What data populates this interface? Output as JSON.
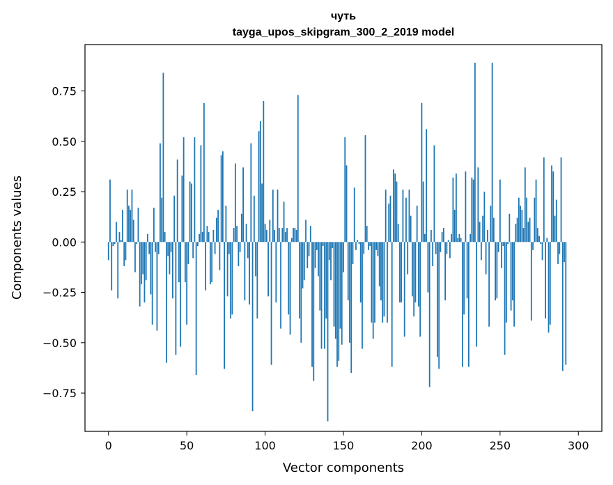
{
  "chart_data": {
    "type": "bar",
    "title_line1": "чуть",
    "title_line2": "tayga_upos_skipgram_300_2_2019 model",
    "xlabel": "Vector components",
    "ylabel": "Components values",
    "xlim": [
      -15,
      315
    ],
    "ylim": [
      -0.94,
      0.98
    ],
    "xticks": [
      0,
      50,
      100,
      150,
      200,
      250,
      300
    ],
    "yticks": [
      -0.75,
      -0.5,
      -0.25,
      0.0,
      0.25,
      0.5,
      0.75
    ],
    "ytick_labels": [
      "−0.75",
      "−0.50",
      "−0.25",
      "0.00",
      "0.25",
      "0.50",
      "0.75"
    ],
    "grid": false,
    "bar_color": "#1f77b4",
    "values": [
      -0.09,
      0.31,
      -0.24,
      -0.02,
      -0.01,
      0.1,
      -0.28,
      0.05,
      0.01,
      0.16,
      -0.12,
      -0.09,
      0.26,
      0.18,
      0.16,
      0.26,
      0.11,
      -0.15,
      -0.01,
      0.17,
      -0.32,
      -0.21,
      -0.16,
      -0.3,
      -0.19,
      0.04,
      -0.06,
      -0.26,
      -0.41,
      0.17,
      -0.05,
      -0.44,
      -0.06,
      0.49,
      0.22,
      0.84,
      0.05,
      -0.6,
      -0.07,
      -0.16,
      -0.05,
      -0.28,
      0.23,
      -0.56,
      0.41,
      -0.2,
      -0.52,
      0.33,
      0.52,
      -0.2,
      -0.41,
      -0.11,
      0.3,
      0.29,
      -0.08,
      0.52,
      -0.66,
      -0.02,
      0.04,
      0.48,
      0.05,
      0.69,
      -0.24,
      0.08,
      0.05,
      -0.21,
      -0.2,
      0.06,
      -0.06,
      0.12,
      0.16,
      -0.14,
      0.43,
      0.45,
      -0.63,
      0.18,
      -0.27,
      -0.06,
      -0.38,
      -0.36,
      0.07,
      0.39,
      0.08,
      -0.12,
      -0.05,
      0.14,
      0.37,
      -0.29,
      0.09,
      -0.08,
      -0.31,
      0.49,
      -0.84,
      0.23,
      -0.17,
      -0.38,
      0.55,
      0.6,
      0.29,
      0.7,
      0.09,
      0.06,
      -0.27,
      0.11,
      -0.61,
      0.26,
      0.06,
      -0.3,
      0.26,
      0.07,
      -0.43,
      0.07,
      0.2,
      0.05,
      0.07,
      -0.36,
      -0.46,
      0.02,
      0.07,
      0.07,
      0.06,
      0.73,
      -0.38,
      -0.5,
      -0.23,
      -0.19,
      0.11,
      -0.13,
      -0.07,
      0.08,
      -0.62,
      -0.69,
      -0.13,
      -0.04,
      -0.17,
      -0.34,
      -0.53,
      -0.02,
      -0.53,
      -0.38,
      -0.89,
      -0.09,
      -0.19,
      -0.03,
      -0.42,
      -0.48,
      -0.62,
      -0.59,
      -0.43,
      -0.51,
      -0.15,
      0.52,
      0.38,
      -0.29,
      -0.5,
      -0.65,
      -0.11,
      0.27,
      -0.04,
      0.01,
      -0.01,
      -0.3,
      -0.53,
      -0.06,
      0.53,
      0.08,
      -0.04,
      -0.02,
      -0.4,
      -0.48,
      -0.4,
      -0.04,
      -0.07,
      -0.22,
      -0.29,
      -0.4,
      -0.37,
      0.26,
      -0.4,
      0.19,
      0.23,
      -0.62,
      0.36,
      0.34,
      0.3,
      0.09,
      -0.3,
      -0.3,
      0.26,
      -0.47,
      0.22,
      -0.16,
      0.26,
      0.13,
      -0.27,
      -0.37,
      -0.3,
      0.18,
      -0.32,
      -0.47,
      0.69,
      0.3,
      0.04,
      0.56,
      -0.25,
      -0.72,
      0.06,
      -0.12,
      0.48,
      -0.06,
      -0.57,
      -0.63,
      -0.05,
      0.05,
      0.07,
      -0.29,
      -0.06,
      0.01,
      -0.08,
      0.04,
      0.32,
      0.16,
      0.34,
      0.02,
      0.04,
      0.02,
      -0.62,
      -0.36,
      0.35,
      -0.28,
      -0.62,
      0.04,
      0.32,
      0.31,
      0.89,
      -0.52,
      0.37,
      0.1,
      -0.09,
      0.13,
      0.25,
      -0.16,
      0.06,
      -0.42,
      0.18,
      0.89,
      0.12,
      -0.29,
      -0.28,
      -0.05,
      0.31,
      -0.13,
      -0.02,
      -0.56,
      -0.4,
      -0.01,
      0.14,
      -0.34,
      -0.29,
      -0.42,
      0.09,
      0.12,
      0.22,
      0.18,
      0.16,
      0.07,
      0.37,
      0.22,
      0.1,
      0.12,
      -0.39,
      -0.04,
      0.22,
      0.31,
      0.07,
      0.03,
      -0.01,
      -0.09,
      0.42,
      -0.38,
      0.02,
      -0.45,
      -0.41,
      0.38,
      0.35,
      0.13,
      0.21,
      -0.11,
      -0.06,
      0.42,
      -0.64,
      -0.1,
      -0.61
    ]
  }
}
